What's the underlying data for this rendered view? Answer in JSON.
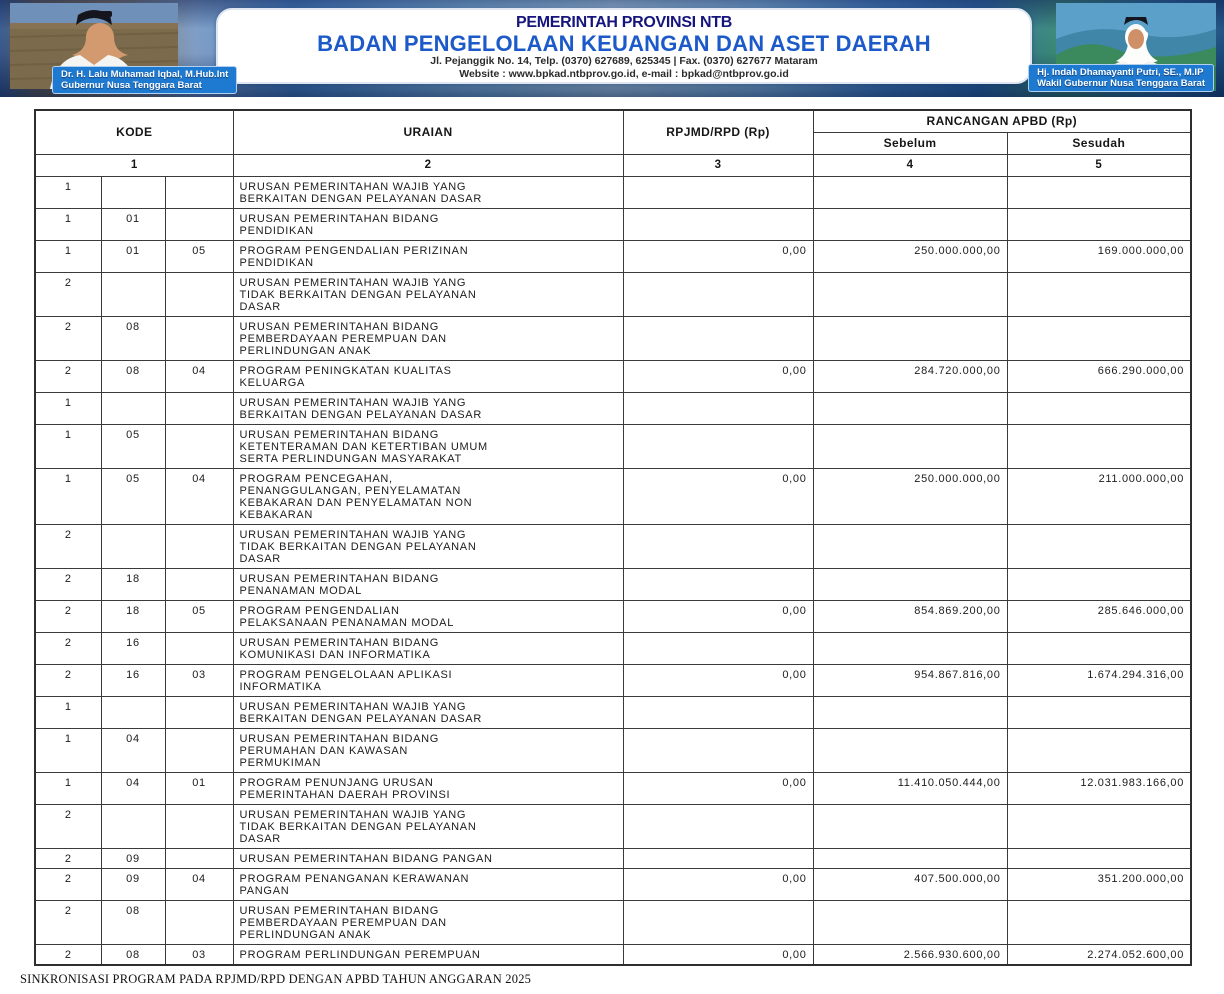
{
  "banner": {
    "line1": "PEMERINTAH PROVINSI NTB",
    "line2": "BADAN PENGELOLAAN KEUANGAN DAN ASET DAERAH",
    "line3": "Jl. Pejanggik No. 14, Telp. (0370) 627689, 625345 | Fax. (0370) 627677 Mataram",
    "line4": "Website : www.bpkad.ntbprov.go.id, e-mail : bpkad@ntbprov.go.id",
    "governor": {
      "name": "Dr. H. Lalu Muhamad Iqbal, M.Hub.Int",
      "title": "Gubernur Nusa Tenggara Barat"
    },
    "vice_governor": {
      "name": "Hj. Indah Dhamayanti Putri, SE., M.IP",
      "title": "Wakil Gubernur Nusa Tenggara Barat"
    },
    "colors": {
      "title_navy": "#15157d",
      "title_blue": "#1b5ac8",
      "chip_blue": "#1e7ad0"
    }
  },
  "table": {
    "headers": {
      "kode": "KODE",
      "uraian": "URAIAN",
      "rpjmd": "RPJMD/RPD (Rp)",
      "rancangan": "RANCANGAN APBD (Rp)",
      "sebelum": "Sebelum",
      "sesudah": "Sesudah",
      "col_numbers": [
        "1",
        "2",
        "3",
        "4",
        "5"
      ]
    },
    "rows": [
      {
        "k1": "1",
        "k2": "",
        "k3": "",
        "uraian": "URUSAN PEMERINTAHAN WAJIB YANG\nBERKAITAN DENGAN PELAYANAN DASAR",
        "rpjmd": "",
        "sebelum": "",
        "sesudah": ""
      },
      {
        "k1": "1",
        "k2": "01",
        "k3": "",
        "uraian": "URUSAN PEMERINTAHAN BIDANG\nPENDIDIKAN",
        "rpjmd": "",
        "sebelum": "",
        "sesudah": ""
      },
      {
        "k1": "1",
        "k2": "01",
        "k3": "05",
        "uraian": "PROGRAM PENGENDALIAN PERIZINAN\nPENDIDIKAN",
        "rpjmd": "0,00",
        "sebelum": "250.000.000,00",
        "sesudah": "169.000.000,00"
      },
      {
        "k1": "2",
        "k2": "",
        "k3": "",
        "uraian": "URUSAN PEMERINTAHAN WAJIB YANG\nTIDAK BERKAITAN DENGAN PELAYANAN\nDASAR",
        "rpjmd": "",
        "sebelum": "",
        "sesudah": ""
      },
      {
        "k1": "2",
        "k2": "08",
        "k3": "",
        "uraian": "URUSAN PEMERINTAHAN BIDANG\nPEMBERDAYAAN PEREMPUAN DAN\nPERLINDUNGAN ANAK",
        "rpjmd": "",
        "sebelum": "",
        "sesudah": ""
      },
      {
        "k1": "2",
        "k2": "08",
        "k3": "04",
        "uraian": "PROGRAM PENINGKATAN KUALITAS\nKELUARGA",
        "rpjmd": "0,00",
        "sebelum": "284.720.000,00",
        "sesudah": "666.290.000,00"
      },
      {
        "k1": "1",
        "k2": "",
        "k3": "",
        "uraian": "URUSAN PEMERINTAHAN WAJIB YANG\nBERKAITAN DENGAN PELAYANAN DASAR",
        "rpjmd": "",
        "sebelum": "",
        "sesudah": ""
      },
      {
        "k1": "1",
        "k2": "05",
        "k3": "",
        "uraian": "URUSAN PEMERINTAHAN BIDANG\nKETENTERAMAN DAN KETERTIBAN UMUM\nSERTA PERLINDUNGAN MASYARAKAT",
        "rpjmd": "",
        "sebelum": "",
        "sesudah": ""
      },
      {
        "k1": "1",
        "k2": "05",
        "k3": "04",
        "uraian": "PROGRAM PENCEGAHAN,\nPENANGGULANGAN, PENYELAMATAN\nKEBAKARAN DAN PENYELAMATAN NON\nKEBAKARAN",
        "rpjmd": "0,00",
        "sebelum": "250.000.000,00",
        "sesudah": "211.000.000,00"
      },
      {
        "k1": "2",
        "k2": "",
        "k3": "",
        "uraian": "URUSAN PEMERINTAHAN WAJIB YANG\nTIDAK BERKAITAN DENGAN PELAYANAN\nDASAR",
        "rpjmd": "",
        "sebelum": "",
        "sesudah": ""
      },
      {
        "k1": "2",
        "k2": "18",
        "k3": "",
        "uraian": "URUSAN PEMERINTAHAN BIDANG\nPENANAMAN MODAL",
        "rpjmd": "",
        "sebelum": "",
        "sesudah": ""
      },
      {
        "k1": "2",
        "k2": "18",
        "k3": "05",
        "uraian": "PROGRAM PENGENDALIAN\nPELAKSANAAN PENANAMAN MODAL",
        "rpjmd": "0,00",
        "sebelum": "854.869.200,00",
        "sesudah": "285.646.000,00"
      },
      {
        "k1": "2",
        "k2": "16",
        "k3": "",
        "uraian": "URUSAN PEMERINTAHAN BIDANG\nKOMUNIKASI DAN INFORMATIKA",
        "rpjmd": "",
        "sebelum": "",
        "sesudah": ""
      },
      {
        "k1": "2",
        "k2": "16",
        "k3": "03",
        "uraian": "PROGRAM PENGELOLAAN APLIKASI\nINFORMATIKA",
        "rpjmd": "0,00",
        "sebelum": "954.867.816,00",
        "sesudah": "1.674.294.316,00"
      },
      {
        "k1": "1",
        "k2": "",
        "k3": "",
        "uraian": "URUSAN PEMERINTAHAN WAJIB YANG\nBERKAITAN DENGAN PELAYANAN DASAR",
        "rpjmd": "",
        "sebelum": "",
        "sesudah": ""
      },
      {
        "k1": "1",
        "k2": "04",
        "k3": "",
        "uraian": "URUSAN PEMERINTAHAN BIDANG\nPERUMAHAN DAN KAWASAN\nPERMUKIMAN",
        "rpjmd": "",
        "sebelum": "",
        "sesudah": ""
      },
      {
        "k1": "1",
        "k2": "04",
        "k3": "01",
        "uraian": "PROGRAM PENUNJANG URUSAN\nPEMERINTAHAN DAERAH PROVINSI",
        "rpjmd": "0,00",
        "sebelum": "11.410.050.444,00",
        "sesudah": "12.031.983.166,00"
      },
      {
        "k1": "2",
        "k2": "",
        "k3": "",
        "uraian": "URUSAN PEMERINTAHAN WAJIB YANG\nTIDAK BERKAITAN DENGAN PELAYANAN\nDASAR",
        "rpjmd": "",
        "sebelum": "",
        "sesudah": ""
      },
      {
        "k1": "2",
        "k2": "09",
        "k3": "",
        "uraian": "URUSAN PEMERINTAHAN BIDANG PANGAN",
        "rpjmd": "",
        "sebelum": "",
        "sesudah": ""
      },
      {
        "k1": "2",
        "k2": "09",
        "k3": "04",
        "uraian": "PROGRAM PENANGANAN KERAWANAN\nPANGAN",
        "rpjmd": "0,00",
        "sebelum": "407.500.000,00",
        "sesudah": "351.200.000,00"
      },
      {
        "k1": "2",
        "k2": "08",
        "k3": "",
        "uraian": "URUSAN PEMERINTAHAN BIDANG\nPEMBERDAYAAN PEREMPUAN DAN\nPERLINDUNGAN ANAK",
        "rpjmd": "",
        "sebelum": "",
        "sesudah": ""
      },
      {
        "k1": "2",
        "k2": "08",
        "k3": "03",
        "uraian": "PROGRAM PERLINDUNGAN PEREMPUAN",
        "rpjmd": "0,00",
        "sebelum": "2.566.930.600,00",
        "sesudah": "2.274.052.600,00"
      }
    ]
  },
  "footer": {
    "note": "SINKRONISASI PROGRAM PADA RPJMD/RPD DENGAN APBD TAHUN ANGGARAN 2025"
  }
}
